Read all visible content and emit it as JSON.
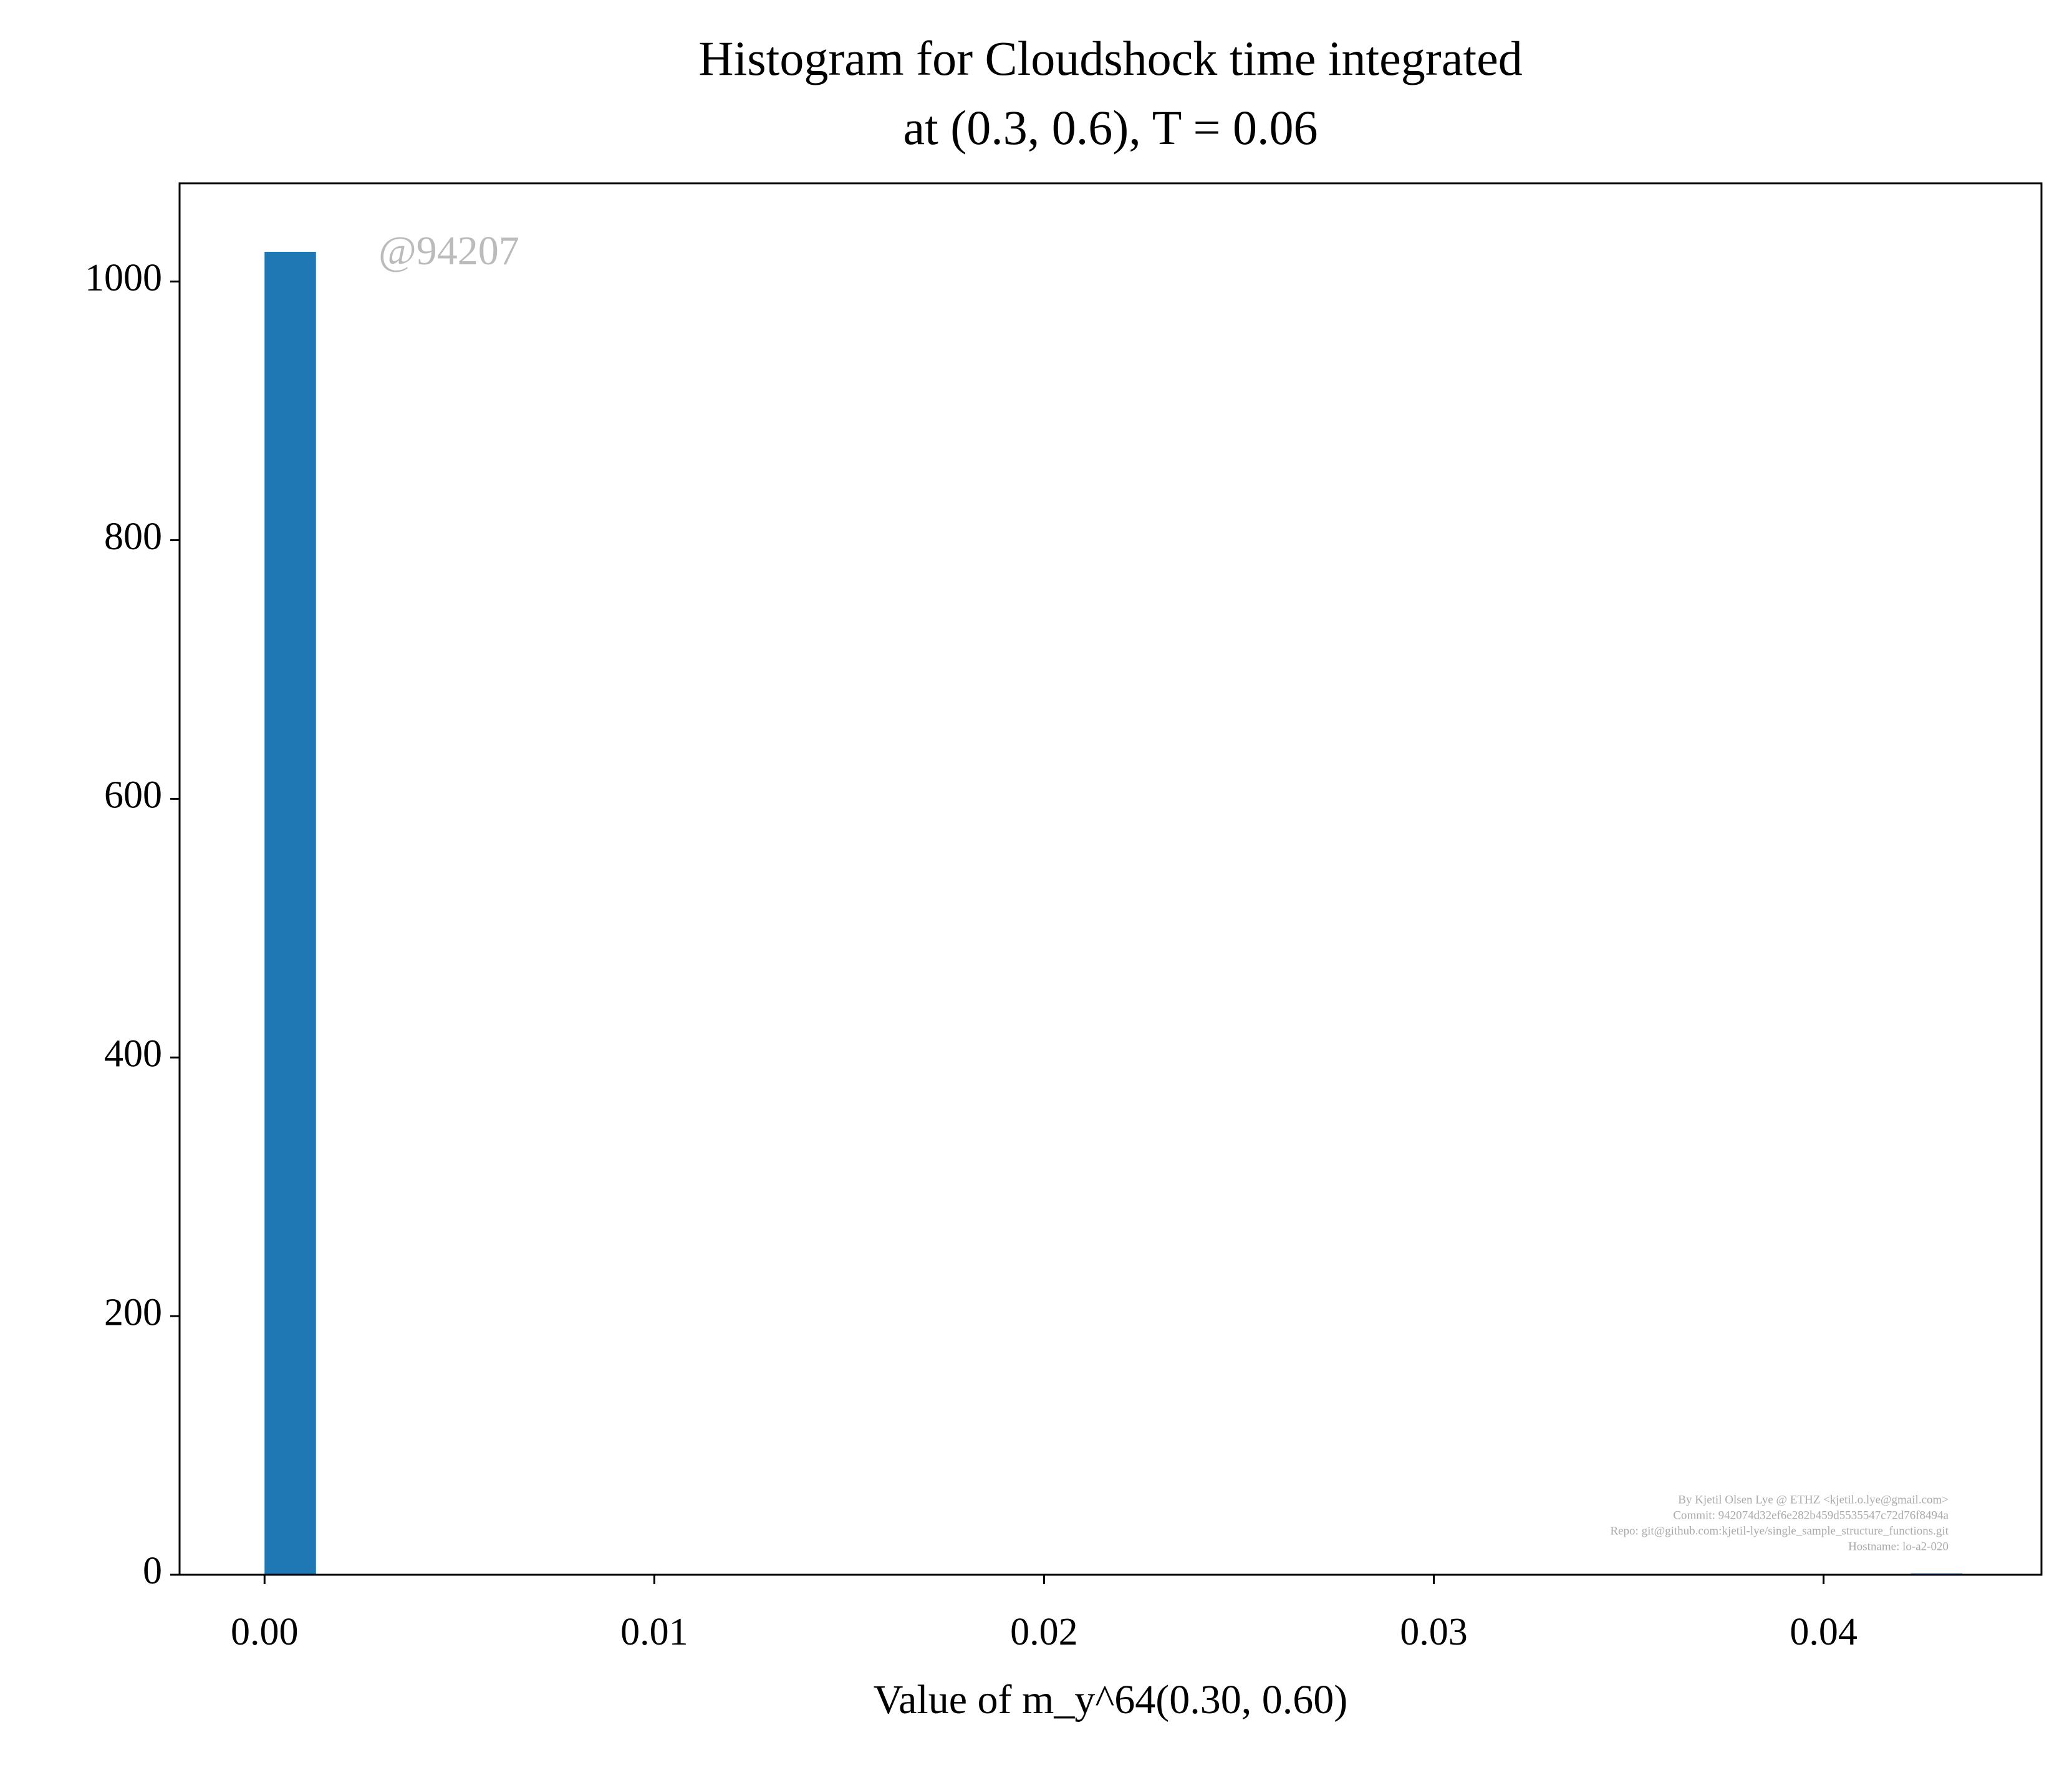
{
  "chart_data": {
    "type": "histogram",
    "title": [
      "Histogram for Cloudshock time integrated",
      "at (0.3, 0.6), T = 0.06"
    ],
    "xlabel": "Value of m_y^64(0.30, 0.60)",
    "watermark": "@94207",
    "footer": [
      "By Kjetil Olsen Lye @ ETHZ <kjetil.o.lye@gmail.com>",
      "Commit: 942074d32ef6e282b459d5535547c72d76f8494a",
      "Repo: git@github.com:kjetil-lye/single_sample_structure_functions.git",
      "Hostname: lo-a2-020"
    ],
    "color": "#1f77b4",
    "bins": [
      0,
      0.00132,
      0.00264,
      0.00396,
      0.00528,
      0.0066,
      0.00792,
      0.00924,
      0.01056,
      0.01188,
      0.0132,
      0.01452,
      0.01584,
      0.01716,
      0.01848,
      0.0198,
      0.02112,
      0.02244,
      0.02376,
      0.02508,
      0.0264,
      0.02772,
      0.02904,
      0.03036,
      0.03168,
      0.033,
      0.03432,
      0.03564,
      0.03696,
      0.03828,
      0.0396,
      0.04092,
      0.04224,
      0.04356
    ],
    "values": [
      1023,
      0,
      0,
      0,
      0,
      0,
      0,
      0,
      0,
      0,
      0,
      0,
      0,
      0,
      0,
      0,
      0,
      0,
      0,
      0,
      0,
      0,
      0,
      0,
      0,
      0,
      0,
      0,
      0,
      0,
      0,
      0,
      1
    ],
    "xlim": [
      -0.00218,
      0.04559
    ],
    "xticks": [
      {
        "value": 0,
        "label": "0.00"
      },
      {
        "value": 0.01,
        "label": "0.01"
      },
      {
        "value": 0.02,
        "label": "0.02"
      },
      {
        "value": 0.03,
        "label": "0.03"
      },
      {
        "value": 0.04,
        "label": "0.04"
      }
    ],
    "ylim": [
      0,
      1076
    ],
    "yticks": [
      0,
      200,
      400,
      600,
      800,
      1000
    ]
  }
}
